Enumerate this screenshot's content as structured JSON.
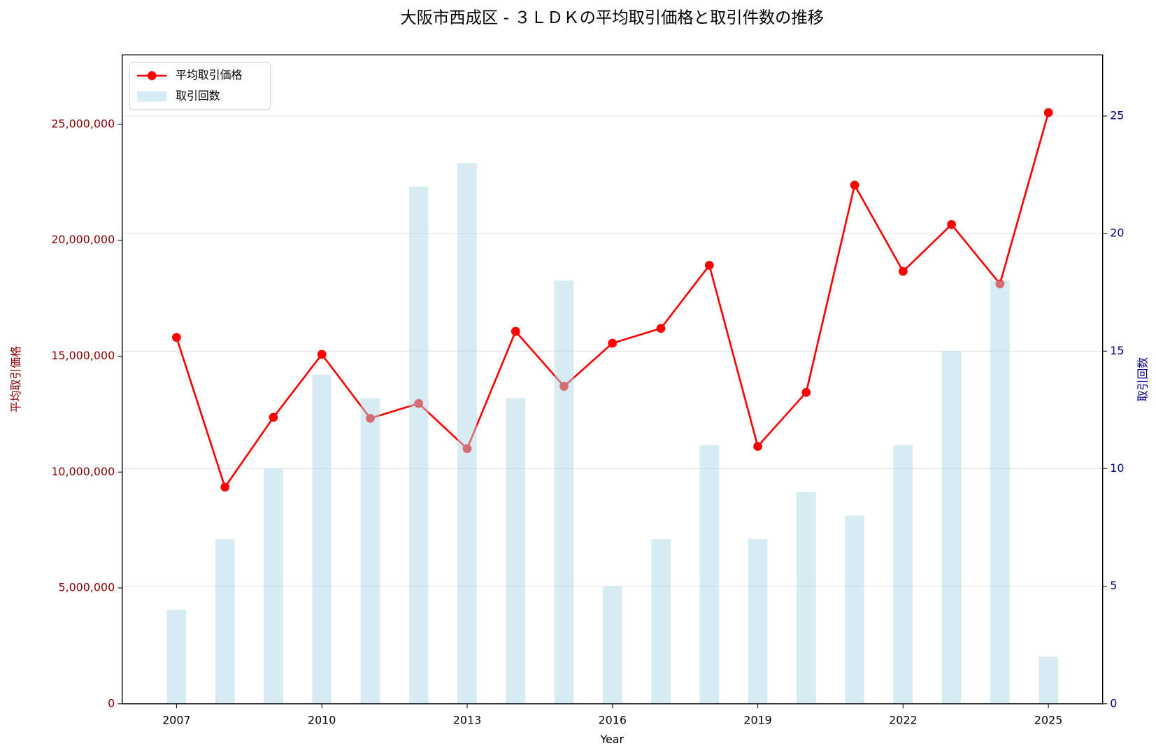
{
  "chart_data": {
    "type": "line-bar",
    "title": "大阪市西成区 - ３ＬＤＫの平均取引価格と取引件数の推移",
    "xlabel": "Year",
    "ylabel": "平均取引価格",
    "y2label": "取引回数",
    "x": [
      2007,
      2008,
      2009,
      2010,
      2011,
      2012,
      2013,
      2014,
      2015,
      2016,
      2017,
      2018,
      2019,
      2020,
      2021,
      2022,
      2023,
      2024,
      2025
    ],
    "series": [
      {
        "name": "平均取引価格",
        "type": "line",
        "color": "#ff0000",
        "values": [
          15810000,
          9350000,
          12360000,
          15080000,
          12320000,
          12960000,
          11010000,
          16070000,
          13700000,
          15560000,
          16200000,
          18920000,
          11110000,
          13440000,
          22380000,
          18660000,
          20680000,
          18120000,
          25510000
        ]
      },
      {
        "name": "取引回数",
        "type": "bar",
        "axis": "y2",
        "color": "#add8e6",
        "values": [
          4,
          7,
          10,
          14,
          13,
          22,
          23,
          13,
          18,
          5,
          7,
          11,
          7,
          9,
          8,
          11,
          15,
          18,
          2
        ]
      }
    ],
    "xlim": [
      2005.88,
      2026.12
    ],
    "xticks": [
      2007,
      2010,
      2013,
      2016,
      2019,
      2022,
      2025
    ],
    "ylim": [
      0,
      28000000
    ],
    "yticks": [
      0,
      {
        "value": 5000000,
        "label": "5,000,000"
      },
      {
        "value": 10000000,
        "label": "10,000,000"
      },
      {
        "value": 15000000,
        "label": "15,000,000"
      },
      {
        "value": 20000000,
        "label": "20,000,000"
      },
      {
        "value": 25000000,
        "label": "25,000,000"
      }
    ],
    "y2lim": [
      0,
      27.6
    ],
    "y2ticks": [
      0,
      5,
      10,
      15,
      20,
      25
    ],
    "grid": true,
    "legend": "upper left"
  }
}
